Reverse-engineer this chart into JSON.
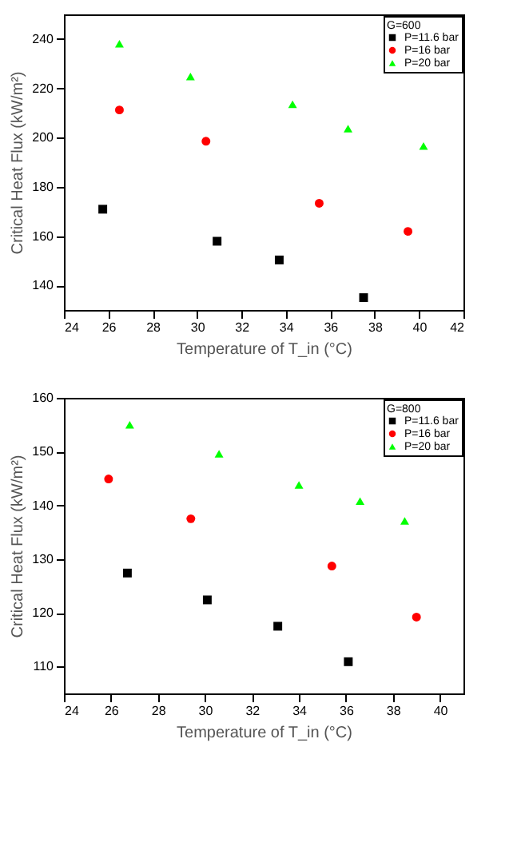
{
  "chart_data": [
    {
      "type": "scatter",
      "xlabel": "Temperature of T_in (°C)",
      "ylabel": "Critical Heat Flux (kW/m²)",
      "legend_title": "G=600",
      "legend": "top right",
      "grid": false,
      "xlim": [
        24,
        42
      ],
      "xticks": [
        24,
        26,
        28,
        30,
        32,
        34,
        36,
        38,
        40,
        42
      ],
      "ylim": [
        130,
        250
      ],
      "yticks": [
        140,
        160,
        180,
        200,
        220,
        240
      ],
      "series": [
        {
          "name": "P=11.6 bar",
          "color": "#000000",
          "marker": "square",
          "x": [
            25.75,
            30.9,
            33.7,
            37.5
          ],
          "values": [
            170.9,
            157.9,
            150.3,
            135.0
          ]
        },
        {
          "name": "P=16 bar",
          "color": "#ff0000",
          "marker": "circle",
          "x": [
            26.5,
            30.4,
            35.5,
            39.5
          ],
          "values": [
            211.2,
            198.5,
            173.3,
            161.9
          ]
        },
        {
          "name": "P=20 bar",
          "color": "#00ff00",
          "marker": "triangle",
          "x": [
            26.5,
            29.7,
            34.3,
            36.8,
            40.2
          ],
          "values": [
            238.1,
            224.8,
            213.5,
            203.6,
            196.6
          ]
        }
      ]
    },
    {
      "type": "scatter",
      "xlabel": "Temperature of T_in (°C)",
      "ylabel": "Critical Heat Flux (kW/m²)",
      "legend_title": "G=800",
      "legend": "top right",
      "grid": false,
      "xlim": [
        24,
        41
      ],
      "xticks": [
        24,
        26,
        28,
        30,
        32,
        34,
        36,
        38,
        40
      ],
      "ylim": [
        105,
        160
      ],
      "yticks": [
        110,
        120,
        130,
        140,
        150,
        160
      ],
      "series": [
        {
          "name": "P=11.6 bar",
          "color": "#000000",
          "marker": "square",
          "x": [
            26.7,
            30.1,
            33.1,
            36.1
          ],
          "values": [
            127.4,
            122.4,
            117.5,
            110.9
          ]
        },
        {
          "name": "P=16 bar",
          "color": "#ff0000",
          "marker": "circle",
          "x": [
            25.9,
            29.4,
            35.4,
            39.0
          ],
          "values": [
            144.9,
            137.5,
            128.7,
            119.2
          ]
        },
        {
          "name": "P=20 bar",
          "color": "#00ff00",
          "marker": "triangle",
          "x": [
            26.8,
            30.6,
            34.0,
            36.6,
            38.5
          ],
          "values": [
            155.0,
            149.6,
            143.8,
            140.8,
            137.1
          ]
        }
      ]
    }
  ]
}
